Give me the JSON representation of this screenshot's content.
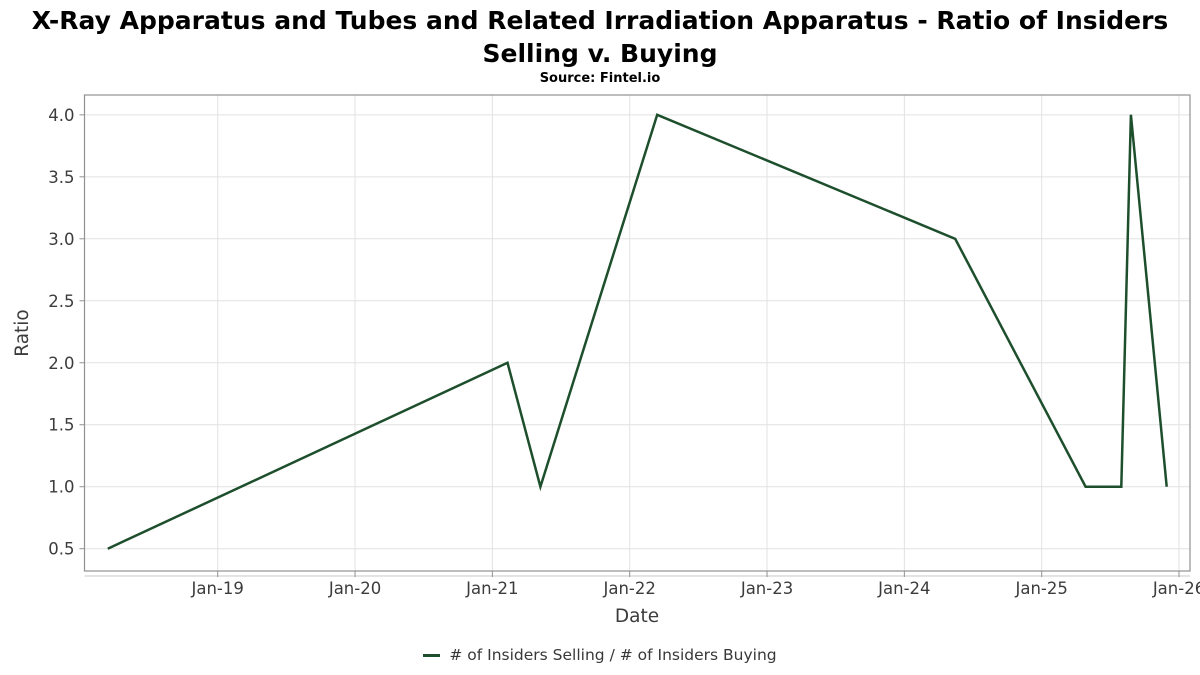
{
  "header": {
    "title": "X-Ray Apparatus and Tubes and Related Irradiation Apparatus - Ratio of Insiders Selling v. Buying",
    "source": "Source: Fintel.io"
  },
  "colors": {
    "line": "#1e4f2d",
    "grid": "#e2e2e2",
    "border": "#919191",
    "axis_underline": "#c8c8c8",
    "tick_text": "#3c3c3c",
    "title_text": "#000000"
  },
  "chart_data": {
    "type": "line",
    "title": "X-Ray Apparatus and Tubes and Related Irradiation Apparatus - Ratio of Insiders Selling v. Buying",
    "subtitle": "Source: Fintel.io",
    "xlabel": "Date",
    "ylabel": "Ratio",
    "xlim": [
      2018.03,
      2026.08
    ],
    "ylim": [
      0.32,
      4.16
    ],
    "grid": true,
    "legend_position": "bottom-center",
    "x_ticks": [
      {
        "value": 2019,
        "label": "Jan-19"
      },
      {
        "value": 2020,
        "label": "Jan-20"
      },
      {
        "value": 2021,
        "label": "Jan-21"
      },
      {
        "value": 2022,
        "label": "Jan-22"
      },
      {
        "value": 2023,
        "label": "Jan-23"
      },
      {
        "value": 2024,
        "label": "Jan-24"
      },
      {
        "value": 2025,
        "label": "Jan-25"
      },
      {
        "value": 2026,
        "label": "Jan-26"
      }
    ],
    "y_ticks": [
      {
        "value": 0.5,
        "label": "0.5"
      },
      {
        "value": 1.0,
        "label": "1.0"
      },
      {
        "value": 1.5,
        "label": "1.5"
      },
      {
        "value": 2.0,
        "label": "2.0"
      },
      {
        "value": 2.5,
        "label": "2.5"
      },
      {
        "value": 3.0,
        "label": "3.0"
      },
      {
        "value": 3.5,
        "label": "3.5"
      },
      {
        "value": 4.0,
        "label": "4.0"
      }
    ],
    "series": [
      {
        "name": "# of Insiders Selling / # of Insiders Buying",
        "color": "#1e4f2d",
        "points": [
          {
            "x": 2018.2,
            "y": 0.5,
            "date": "Mar-18"
          },
          {
            "x": 2021.11,
            "y": 2.0,
            "date": "Feb-21"
          },
          {
            "x": 2021.35,
            "y": 1.0,
            "date": "May-21"
          },
          {
            "x": 2022.2,
            "y": 4.0,
            "date": "Mar-22"
          },
          {
            "x": 2024.37,
            "y": 3.0,
            "date": "May-24"
          },
          {
            "x": 2025.32,
            "y": 1.0,
            "date": "Apr-25"
          },
          {
            "x": 2025.58,
            "y": 1.0,
            "date": "Aug-25"
          },
          {
            "x": 2025.65,
            "y": 4.0,
            "date": "Sep-25"
          },
          {
            "x": 2025.91,
            "y": 1.0,
            "date": "Dec-25"
          }
        ]
      }
    ]
  }
}
